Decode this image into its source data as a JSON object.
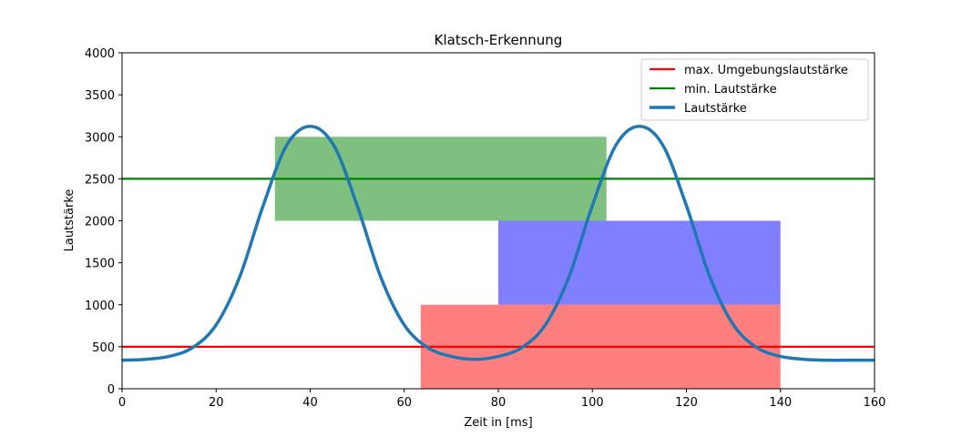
{
  "chart_data": {
    "type": "line",
    "title": "Klatsch-Erkennung",
    "xlabel": "Zeit in [ms]",
    "ylabel": "Lautstärke",
    "xlim": [
      0,
      160
    ],
    "ylim": [
      0,
      4000
    ],
    "x_ticks": [
      "0",
      "20",
      "40",
      "60",
      "80",
      "100",
      "120",
      "140",
      "160"
    ],
    "y_ticks": [
      "0",
      "500",
      "1000",
      "1500",
      "2000",
      "2500",
      "3000",
      "3500",
      "4000"
    ],
    "grid": false,
    "legend_position": "top-right",
    "regions": [
      {
        "color": "#008000",
        "opacity": 0.5,
        "x": [
          32.5,
          103
        ],
        "y": [
          2000,
          3000
        ]
      },
      {
        "color": "#0000ff",
        "opacity": 0.5,
        "x": [
          80,
          140
        ],
        "y": [
          1000,
          2000
        ]
      },
      {
        "color": "#ff0000",
        "opacity": 0.5,
        "x": [
          63.5,
          140
        ],
        "y": [
          0,
          1000
        ]
      }
    ],
    "series": [
      {
        "name": "max. Umgebungslautstärke",
        "kind": "hline",
        "y": 500,
        "color": "#ff0000"
      },
      {
        "name": "min. Lautstärke",
        "kind": "hline",
        "y": 2500,
        "color": "#008000"
      },
      {
        "name": "Lautstärke",
        "kind": "curve",
        "color": "#1f77b4",
        "x": [
          0,
          5,
          10,
          15,
          20,
          25,
          30,
          35,
          40,
          45,
          50,
          55,
          60,
          65,
          70,
          75,
          80,
          85,
          90,
          95,
          100,
          105,
          110,
          115,
          120,
          125,
          130,
          135,
          140,
          145,
          150,
          155,
          160
        ],
        "y": [
          340,
          350,
          385,
          490,
          760,
          1330,
          2180,
          2900,
          3125,
          2900,
          2180,
          1330,
          760,
          490,
          385,
          350,
          385,
          490,
          760,
          1330,
          2180,
          2900,
          3125,
          2900,
          2180,
          1330,
          760,
          490,
          385,
          350,
          340,
          340,
          340
        ]
      }
    ]
  }
}
